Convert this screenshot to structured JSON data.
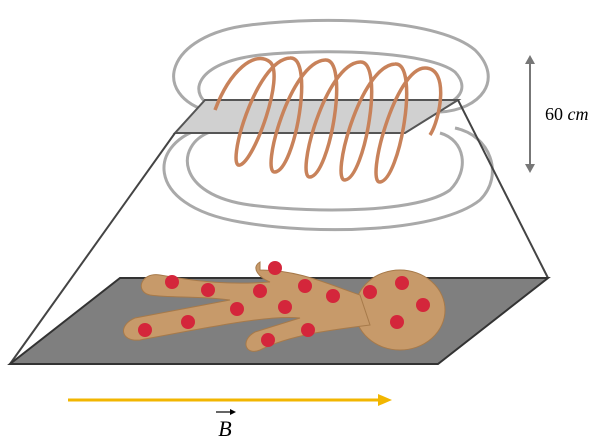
{
  "dimension": {
    "value": "60",
    "unit": "cm"
  },
  "field": {
    "symbol": "B"
  }
}
